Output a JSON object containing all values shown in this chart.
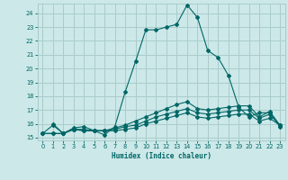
{
  "xlabel": "Humidex (Indice chaleur)",
  "bg_color": "#cce8e8",
  "grid_color": "#aacccc",
  "line_color": "#006666",
  "xlim": [
    -0.5,
    23.5
  ],
  "ylim": [
    14.8,
    24.7
  ],
  "yticks": [
    15,
    16,
    17,
    18,
    19,
    20,
    21,
    22,
    23,
    24
  ],
  "xticks": [
    0,
    1,
    2,
    3,
    4,
    5,
    6,
    7,
    8,
    9,
    10,
    11,
    12,
    13,
    14,
    15,
    16,
    17,
    18,
    19,
    20,
    21,
    22,
    23
  ],
  "line1_x": [
    1,
    2,
    3,
    4,
    5,
    6,
    7,
    8,
    9,
    10,
    11,
    12,
    13,
    14,
    15,
    16,
    17,
    18,
    19,
    20,
    21,
    22,
    23
  ],
  "line1_y": [
    16.0,
    15.3,
    15.7,
    15.8,
    15.5,
    15.2,
    15.8,
    18.3,
    20.5,
    22.8,
    22.8,
    23.0,
    23.2,
    24.6,
    23.7,
    21.3,
    20.8,
    19.5,
    17.2,
    16.5,
    16.8,
    16.8,
    15.8
  ],
  "line2_x": [
    0,
    1,
    2,
    3,
    4,
    5,
    6,
    7,
    8,
    9,
    10,
    11,
    12,
    13,
    14,
    15,
    16,
    17,
    18,
    19,
    20,
    21,
    22,
    23
  ],
  "line2_y": [
    15.3,
    15.3,
    15.3,
    15.6,
    15.5,
    15.5,
    15.5,
    15.7,
    15.9,
    16.2,
    16.5,
    16.8,
    17.1,
    17.4,
    17.6,
    17.1,
    17.0,
    17.1,
    17.2,
    17.3,
    17.3,
    16.5,
    16.9,
    15.9
  ],
  "line3_x": [
    0,
    1,
    2,
    3,
    4,
    5,
    6,
    7,
    8,
    9,
    10,
    11,
    12,
    13,
    14,
    15,
    16,
    17,
    18,
    19,
    20,
    21,
    22,
    23
  ],
  "line3_y": [
    15.3,
    15.3,
    15.3,
    15.6,
    15.5,
    15.5,
    15.5,
    15.6,
    15.8,
    15.9,
    16.2,
    16.5,
    16.7,
    16.9,
    17.1,
    16.8,
    16.7,
    16.8,
    16.9,
    17.0,
    17.0,
    16.4,
    16.7,
    15.9
  ],
  "line4_x": [
    0,
    1,
    2,
    3,
    4,
    5,
    6,
    7,
    8,
    9,
    10,
    11,
    12,
    13,
    14,
    15,
    16,
    17,
    18,
    19,
    20,
    21,
    22,
    23
  ],
  "line4_y": [
    15.3,
    15.9,
    15.3,
    15.6,
    15.6,
    15.5,
    15.5,
    15.5,
    15.6,
    15.7,
    16.0,
    16.2,
    16.4,
    16.6,
    16.8,
    16.5,
    16.4,
    16.5,
    16.6,
    16.7,
    16.7,
    16.2,
    16.4,
    15.9
  ]
}
